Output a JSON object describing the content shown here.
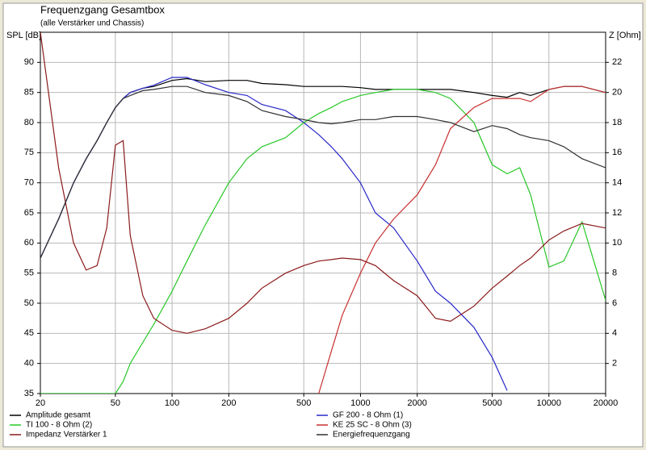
{
  "chart_data": {
    "type": "line",
    "title": "Frequenzgang Gesamtbox",
    "subtitle": "(alle Verstärker und Chassis)",
    "ylabel": "SPL [dB]",
    "y2label": "Z [Ohm]",
    "xscale": "log",
    "grid": true,
    "x": [
      20,
      25,
      30,
      35,
      40,
      45,
      50,
      55,
      60,
      70,
      80,
      100,
      120,
      150,
      200,
      250,
      300,
      400,
      500,
      600,
      700,
      800,
      1000,
      1200,
      1500,
      2000,
      2500,
      3000,
      4000,
      5000,
      6000,
      7000,
      8000,
      10000,
      12000,
      15000,
      20000
    ],
    "xlim": [
      20,
      20000
    ],
    "xticks": [
      20,
      50,
      100,
      200,
      500,
      1000,
      2000,
      5000,
      10000,
      20000
    ],
    "ylim": [
      35,
      95
    ],
    "yticks": [
      35,
      40,
      45,
      50,
      55,
      60,
      65,
      70,
      75,
      80,
      85,
      90
    ],
    "y2lim": [
      0,
      24
    ],
    "y2ticks": [
      2,
      4,
      6,
      8,
      10,
      12,
      14,
      16,
      18,
      20,
      22
    ],
    "series": [
      {
        "name": "Amplitude gesamt",
        "color": "#000000",
        "values": [
          57.5,
          64,
          70,
          74,
          77,
          80,
          82.5,
          84,
          85,
          85.7,
          86,
          87,
          87.3,
          86.8,
          87,
          87,
          86.5,
          86.3,
          86,
          86,
          86,
          86,
          85.8,
          85.5,
          85.5,
          85.5,
          85.5,
          85.5,
          85,
          84.5,
          84.2,
          85,
          84.5,
          85.5,
          86,
          86,
          85
        ]
      },
      {
        "name": "GF 200 - 8 Ohm (1)",
        "color": "#2828c8",
        "values": [
          57.5,
          64,
          70,
          74,
          77,
          80,
          82.5,
          84,
          85,
          85.7,
          86.2,
          87.5,
          87.5,
          86.3,
          85,
          84.5,
          83,
          82,
          80,
          78,
          76,
          74,
          70,
          65,
          62.5,
          57,
          52,
          50,
          46,
          41,
          35.5,
          null,
          null,
          null,
          null,
          null,
          null
        ]
      },
      {
        "name": "TI 100 - 8 Ohm (2)",
        "color": "#28c828",
        "values": [
          35,
          35,
          35,
          35,
          35,
          35,
          35,
          37,
          40,
          43.5,
          46.5,
          52,
          57,
          63,
          70,
          74,
          76,
          77.5,
          80,
          81.5,
          82.5,
          83.5,
          84.5,
          85,
          85.5,
          85.5,
          85,
          84,
          80,
          73,
          71.5,
          72.5,
          68,
          56,
          57,
          63.5,
          50.5
        ]
      },
      {
        "name": "KE 25 SC - 8 Ohm    (3)",
        "color": "#c83030",
        "values": [
          null,
          null,
          null,
          null,
          null,
          null,
          null,
          null,
          null,
          null,
          null,
          null,
          null,
          null,
          null,
          null,
          null,
          null,
          null,
          35,
          42,
          48,
          55,
          60,
          64,
          68,
          73,
          79,
          82.5,
          84,
          84,
          84,
          83.5,
          85.5,
          86,
          86,
          85
        ]
      },
      {
        "name": "Impedanz Verstärker 1",
        "color": "#8b1a1a",
        "axis": "y2",
        "values": [
          24,
          15,
          10,
          8.2,
          8.5,
          11,
          16.5,
          16.8,
          10.5,
          6.5,
          5,
          4.2,
          4,
          4.3,
          5,
          6,
          7,
          8,
          8.5,
          8.8,
          8.9,
          9,
          8.9,
          8.5,
          7.5,
          6.5,
          5,
          4.8,
          5.8,
          7,
          7.8,
          8.5,
          9,
          10.2,
          10.8,
          11.3,
          11
        ]
      },
      {
        "name": "Energiefrequenzgang",
        "color": "#303030",
        "values": [
          57.5,
          64,
          70,
          74,
          77,
          80,
          82.5,
          84,
          84.5,
          85.3,
          85.5,
          86,
          86,
          85,
          84.5,
          83.5,
          82,
          81,
          80.5,
          80,
          79.8,
          80,
          80.5,
          80.5,
          81,
          81,
          80.5,
          80,
          78.5,
          79.5,
          79,
          78,
          77.5,
          77,
          76,
          74,
          72.5
        ]
      }
    ]
  }
}
